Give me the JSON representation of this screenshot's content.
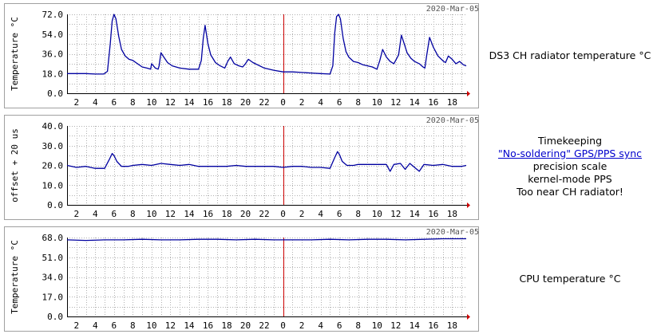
{
  "chart_data": [
    {
      "type": "line",
      "date_label": "2020-Mar-05",
      "ylabel": "Temperature °C",
      "ylim": [
        0,
        72
      ],
      "y_ticks": [
        "0.0",
        "18.0",
        "36.0",
        "54.0",
        "72.0"
      ],
      "x_ticks": [
        "2",
        "4",
        "6",
        "8",
        "10",
        "12",
        "14",
        "16",
        "18",
        "20",
        "22",
        "0",
        "2",
        "4",
        "6",
        "8",
        "10",
        "12",
        "14",
        "16",
        "18"
      ],
      "xlim": [
        1,
        43.5
      ],
      "midnight_x": 24,
      "line_color": "#0000a0",
      "midnight_color": "#cc0000",
      "series": [
        {
          "x": [
            1,
            2,
            3,
            4,
            4.9,
            5.3,
            5.6,
            5.8,
            6.0,
            6.2,
            6.5,
            6.8,
            7.2,
            7.6,
            8.0,
            8.5,
            9.0,
            9.5,
            9.9,
            10.0,
            10.4,
            10.7,
            10.8,
            11.0,
            11.3,
            11.7,
            12.2,
            13.0,
            14.0,
            15.0,
            15.3,
            15.5,
            15.7,
            16.0,
            16.3,
            16.8,
            17.3,
            17.8,
            18.1,
            18.4,
            18.8,
            19.3,
            19.7,
            20.0,
            20.3,
            20.8,
            22.0,
            23.0,
            24.0,
            25.0,
            26.0,
            27.0,
            28.0,
            29.0,
            29.3,
            29.5,
            29.7,
            29.9,
            30.1,
            30.4,
            30.7,
            31.0,
            31.5,
            32.0,
            32.5,
            33.0,
            33.5,
            34.0,
            34.3,
            34.6,
            35.0,
            35.4,
            35.8,
            36.3,
            36.6,
            36.9,
            37.2,
            37.6,
            38.0,
            38.5,
            38.9,
            39.1,
            39.3,
            39.6,
            40.0,
            40.5,
            41.1,
            41.3,
            41.6,
            42.0,
            42.4,
            42.8,
            43.2,
            43.5
          ],
          "values": [
            18,
            18,
            18,
            17.5,
            17.5,
            20,
            45,
            66,
            72,
            68,
            52,
            40,
            34,
            31,
            30,
            27,
            24,
            23,
            22,
            27,
            23,
            22,
            25,
            37,
            33,
            28,
            25,
            23,
            22,
            22,
            30,
            50,
            62,
            45,
            35,
            28,
            25,
            23,
            29,
            33,
            27,
            25,
            24,
            27,
            31,
            28,
            23,
            21,
            19.5,
            19.5,
            19,
            18.5,
            18,
            17.5,
            25,
            55,
            70,
            72,
            68,
            50,
            38,
            33,
            29,
            28,
            26,
            25,
            24,
            22,
            30,
            40,
            33,
            29,
            27,
            35,
            53,
            45,
            37,
            32,
            29,
            27,
            24,
            23,
            35,
            51,
            42,
            34,
            29,
            28,
            34,
            31,
            27,
            29,
            26,
            25
          ]
        }
      ]
    },
    {
      "type": "line",
      "date_label": "2020-Mar-05",
      "ylabel": "offset + 20 us",
      "ylim": [
        0,
        40
      ],
      "y_ticks": [
        "0.0",
        "10.0",
        "20.0",
        "30.0",
        "40.0"
      ],
      "x_ticks": [
        "2",
        "4",
        "6",
        "8",
        "10",
        "12",
        "14",
        "16",
        "18",
        "20",
        "22",
        "0",
        "2",
        "4",
        "6",
        "8",
        "10",
        "12",
        "14",
        "16",
        "18"
      ],
      "xlim": [
        1,
        43.5
      ],
      "midnight_x": 24,
      "line_color": "#0000a0",
      "midnight_color": "#cc0000",
      "series": [
        {
          "x": [
            1,
            2,
            3,
            4,
            5,
            5.5,
            5.8,
            6.0,
            6.3,
            6.8,
            7.5,
            8.0,
            9.0,
            10.0,
            11.0,
            12.0,
            13.0,
            14.0,
            15.0,
            16.0,
            17.0,
            18.0,
            19.0,
            20.0,
            21.0,
            22.0,
            23.0,
            24.0,
            25.0,
            26.0,
            27.0,
            28.0,
            29.0,
            29.5,
            29.8,
            30.0,
            30.3,
            30.8,
            31.5,
            32.0,
            33.0,
            34.0,
            35.0,
            35.4,
            35.8,
            36.5,
            37.0,
            37.5,
            38.0,
            38.5,
            39.0,
            40.0,
            41.0,
            42.0,
            43.0,
            43.5
          ],
          "values": [
            20,
            19,
            19.5,
            18.5,
            18.5,
            23,
            26,
            25,
            22,
            19.5,
            19.5,
            20,
            20.5,
            20,
            21,
            20.5,
            20,
            20.5,
            19.5,
            19.5,
            19.5,
            19.5,
            20,
            19.5,
            19.5,
            19.5,
            19.5,
            19,
            19.5,
            19.5,
            19,
            19,
            18.5,
            24,
            27,
            25.5,
            22,
            20,
            20,
            20.5,
            20.5,
            20.5,
            20.5,
            17,
            20.5,
            21,
            18,
            21,
            19,
            17,
            20.5,
            20,
            20.5,
            19.5,
            19.5,
            20
          ]
        }
      ]
    },
    {
      "type": "line",
      "date_label": "2020-Mar-05",
      "ylabel": "Temperature °C",
      "ylim": [
        0,
        68
      ],
      "y_ticks": [
        "0.0",
        "17.0",
        "34.0",
        "51.0",
        "68.0"
      ],
      "x_ticks": [
        "2",
        "4",
        "6",
        "8",
        "10",
        "12",
        "14",
        "16",
        "18",
        "20",
        "22",
        "0",
        "2",
        "4",
        "6",
        "8",
        "10",
        "12",
        "14",
        "16",
        "18"
      ],
      "xlim": [
        1,
        43.5
      ],
      "midnight_x": 24,
      "line_color": "#0000a0",
      "midnight_color": "#cc0000",
      "series": [
        {
          "x": [
            1,
            3,
            5,
            7,
            9,
            11,
            13,
            15,
            17,
            19,
            21,
            23,
            25,
            27,
            29,
            31,
            33,
            35,
            37,
            39,
            41,
            43,
            43.5
          ],
          "values": [
            66,
            65.5,
            66,
            66,
            66.5,
            66,
            66,
            66.5,
            66.5,
            66,
            66.5,
            66,
            66,
            66,
            66.5,
            66,
            66.5,
            66.5,
            66,
            66.5,
            67,
            67,
            67
          ]
        }
      ]
    }
  ],
  "captions": {
    "chart1": "DS3 CH radiator temperature °C",
    "chart2": {
      "line1": "Timekeeping",
      "link": "\"No-soldering\" GPS/PPS sync",
      "line3": "precision scale",
      "line4": "kernel-mode PPS",
      "line5": "Too near CH radiator!"
    },
    "chart3": "CPU temperature °C"
  }
}
